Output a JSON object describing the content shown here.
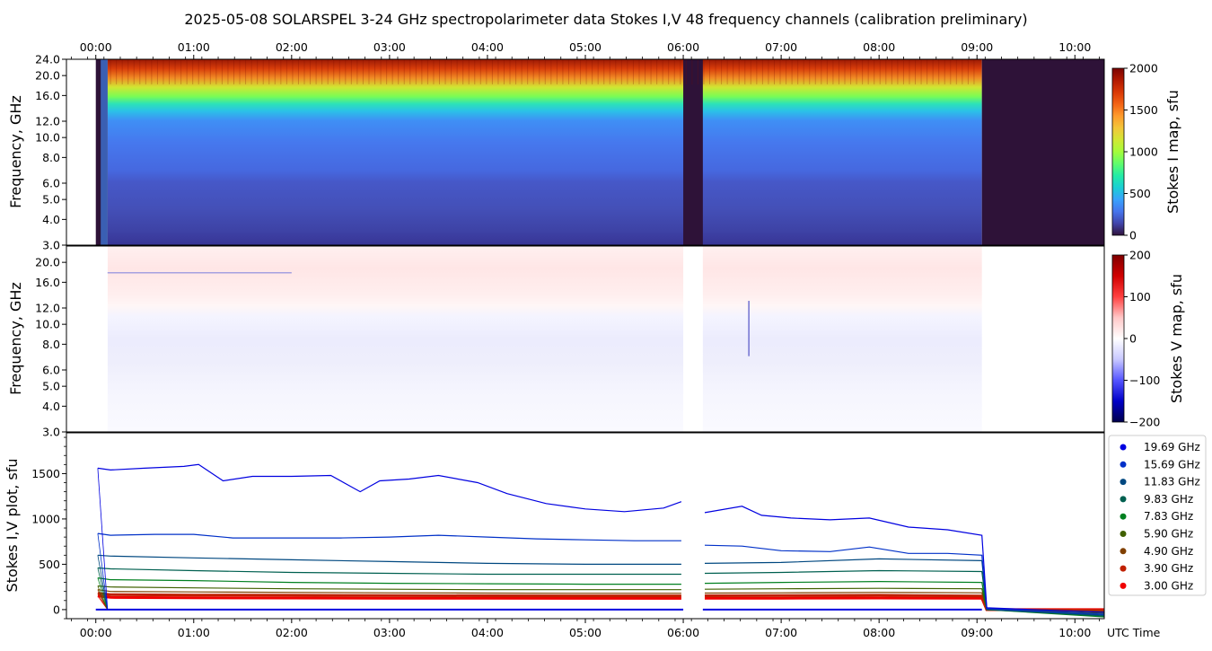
{
  "chart_data": {
    "title": "2025-05-08  SOLARSPEL  3-24 GHz spectropolarimeter data   Stokes I,V   48 frequency channels   (calibration preliminary)",
    "time_axis": {
      "label": "UTC Time",
      "range_hours": [
        -0.3,
        10.3
      ],
      "ticks": [
        "00:00",
        "01:00",
        "02:00",
        "03:00",
        "04:00",
        "05:00",
        "06:00",
        "07:00",
        "08:00",
        "09:00",
        "10:00"
      ],
      "tick_hours": [
        0,
        1,
        2,
        3,
        4,
        5,
        6,
        7,
        8,
        9,
        10
      ]
    },
    "panels": [
      {
        "type": "heatmap",
        "name": "stokes-i-map",
        "ylabel": "Frequency, GHz",
        "y_scale": "log",
        "ylim": [
          3.0,
          24.0
        ],
        "yticks": [
          "3.0",
          "4.0",
          "5.0",
          "6.0",
          "8.0",
          "10.0",
          "12.0",
          "16.0",
          "20.0",
          "24.0"
        ],
        "ytick_values": [
          3,
          4,
          5,
          6,
          8,
          10,
          12,
          16,
          20,
          24
        ],
        "colorbar": {
          "label": "Stokes I map, sfu",
          "range": [
            0,
            2000
          ],
          "ticks": [
            "0",
            "500",
            "1000",
            "1500",
            "2000"
          ],
          "tick_values": [
            0,
            500,
            1000,
            1500,
            2000
          ],
          "colormap": "turbo"
        },
        "data_gaps_hours": [
          [
            0.0,
            0.12
          ],
          [
            6.0,
            6.2
          ],
          [
            9.05,
            10.3
          ]
        ]
      },
      {
        "type": "heatmap",
        "name": "stokes-v-map",
        "ylabel": "Frequency, GHz",
        "y_scale": "log",
        "ylim": [
          3.0,
          24.0
        ],
        "yticks": [
          "3.0",
          "4.0",
          "5.0",
          "6.0",
          "8.0",
          "10.0",
          "12.0",
          "16.0",
          "20.0"
        ],
        "ytick_values": [
          3,
          4,
          5,
          6,
          8,
          10,
          12,
          16,
          20
        ],
        "colorbar": {
          "label": "Stokes V map, sfu",
          "range": [
            -200,
            200
          ],
          "ticks": [
            "−200",
            "−100",
            "0",
            "100",
            "200"
          ],
          "tick_values": [
            -200,
            -100,
            0,
            100,
            200
          ],
          "colormap": "seismic"
        }
      },
      {
        "type": "line",
        "name": "stokes-iv-plot",
        "ylabel": "Stokes I,V plot, sfu",
        "ylim": [
          -100,
          1950
        ],
        "yticks": [
          "0",
          "500",
          "1000",
          "1500"
        ],
        "ytick_values": [
          0,
          500,
          1000,
          1500
        ],
        "legend_position": "right",
        "series": [
          {
            "name": "19.69 GHz",
            "color": "#0000e0",
            "i_values": [
              [
                0.02,
                1560
              ],
              [
                0.15,
                1540
              ],
              [
                0.5,
                1560
              ],
              [
                0.9,
                1580
              ],
              [
                1.05,
                1600
              ],
              [
                1.3,
                1420
              ],
              [
                1.6,
                1470
              ],
              [
                2.0,
                1470
              ],
              [
                2.4,
                1480
              ],
              [
                2.7,
                1300
              ],
              [
                2.9,
                1420
              ],
              [
                3.2,
                1440
              ],
              [
                3.5,
                1480
              ],
              [
                3.9,
                1400
              ],
              [
                4.2,
                1280
              ],
              [
                4.6,
                1170
              ],
              [
                5.0,
                1110
              ],
              [
                5.4,
                1080
              ],
              [
                5.8,
                1120
              ],
              [
                5.98,
                1190
              ],
              [
                6.22,
                1070
              ],
              [
                6.6,
                1140
              ],
              [
                6.8,
                1040
              ],
              [
                7.1,
                1010
              ],
              [
                7.5,
                990
              ],
              [
                7.9,
                1010
              ],
              [
                8.3,
                910
              ],
              [
                8.7,
                880
              ],
              [
                9.05,
                820
              ],
              [
                9.1,
                20
              ],
              [
                10.3,
                -30
              ]
            ]
          },
          {
            "name": "15.69 GHz",
            "color": "#0030c8",
            "i_values": [
              [
                0.02,
                840
              ],
              [
                0.15,
                820
              ],
              [
                0.6,
                830
              ],
              [
                1.0,
                830
              ],
              [
                1.4,
                790
              ],
              [
                2.0,
                790
              ],
              [
                2.5,
                790
              ],
              [
                3.0,
                800
              ],
              [
                3.5,
                820
              ],
              [
                4.0,
                800
              ],
              [
                4.5,
                780
              ],
              [
                5.0,
                770
              ],
              [
                5.5,
                760
              ],
              [
                5.98,
                760
              ],
              [
                6.22,
                710
              ],
              [
                6.6,
                700
              ],
              [
                7.0,
                650
              ],
              [
                7.5,
                640
              ],
              [
                7.9,
                690
              ],
              [
                8.3,
                620
              ],
              [
                8.7,
                620
              ],
              [
                9.05,
                600
              ],
              [
                9.1,
                10
              ],
              [
                10.3,
                -50
              ]
            ]
          },
          {
            "name": "11.83 GHz",
            "color": "#004880",
            "i_values": [
              [
                0.02,
                600
              ],
              [
                0.15,
                590
              ],
              [
                1.0,
                570
              ],
              [
                2.0,
                550
              ],
              [
                3.0,
                530
              ],
              [
                4.0,
                510
              ],
              [
                5.0,
                500
              ],
              [
                5.98,
                500
              ],
              [
                6.22,
                510
              ],
              [
                7.0,
                520
              ],
              [
                8.0,
                560
              ],
              [
                9.05,
                540
              ],
              [
                9.1,
                5
              ],
              [
                10.3,
                -60
              ]
            ]
          },
          {
            "name": "9.83 GHz",
            "color": "#006050",
            "i_values": [
              [
                0.02,
                460
              ],
              [
                0.15,
                450
              ],
              [
                1.0,
                430
              ],
              [
                2.0,
                410
              ],
              [
                3.0,
                400
              ],
              [
                4.0,
                390
              ],
              [
                5.0,
                390
              ],
              [
                5.98,
                390
              ],
              [
                6.22,
                400
              ],
              [
                7.0,
                410
              ],
              [
                8.0,
                430
              ],
              [
                9.05,
                420
              ],
              [
                9.1,
                0
              ],
              [
                10.3,
                -70
              ]
            ]
          },
          {
            "name": "7.83 GHz",
            "color": "#008020",
            "i_values": [
              [
                0.02,
                350
              ],
              [
                0.15,
                330
              ],
              [
                1.0,
                320
              ],
              [
                2.0,
                300
              ],
              [
                3.0,
                290
              ],
              [
                4.0,
                285
              ],
              [
                5.0,
                280
              ],
              [
                5.98,
                280
              ],
              [
                6.22,
                290
              ],
              [
                7.0,
                300
              ],
              [
                8.0,
                310
              ],
              [
                9.05,
                300
              ],
              [
                9.1,
                0
              ],
              [
                10.3,
                -80
              ]
            ]
          },
          {
            "name": "5.90 GHz",
            "color": "#406000",
            "i_values": [
              [
                0.02,
                260
              ],
              [
                0.15,
                250
              ],
              [
                1.0,
                240
              ],
              [
                2.0,
                230
              ],
              [
                3.0,
                225
              ],
              [
                4.0,
                220
              ],
              [
                5.0,
                220
              ],
              [
                5.98,
                220
              ],
              [
                6.22,
                225
              ],
              [
                7.0,
                230
              ],
              [
                8.0,
                235
              ],
              [
                9.05,
                230
              ],
              [
                9.1,
                0
              ],
              [
                10.3,
                -40
              ]
            ]
          },
          {
            "name": "4.90 GHz",
            "color": "#804000",
            "i_values": [
              [
                0.02,
                220
              ],
              [
                0.15,
                200
              ],
              [
                1.0,
                195
              ],
              [
                2.0,
                190
              ],
              [
                3.0,
                185
              ],
              [
                4.0,
                182
              ],
              [
                5.0,
                180
              ],
              [
                5.98,
                180
              ],
              [
                6.22,
                182
              ],
              [
                7.0,
                185
              ],
              [
                8.0,
                190
              ],
              [
                9.05,
                185
              ],
              [
                9.1,
                0
              ],
              [
                10.3,
                -20
              ]
            ]
          },
          {
            "name": "3.90 GHz",
            "color": "#c02000",
            "i_values": [
              [
                0.02,
                180
              ],
              [
                0.15,
                165
              ],
              [
                1.0,
                160
              ],
              [
                2.0,
                158
              ],
              [
                3.0,
                155
              ],
              [
                4.0,
                153
              ],
              [
                5.0,
                152
              ],
              [
                5.98,
                152
              ],
              [
                6.22,
                153
              ],
              [
                7.0,
                155
              ],
              [
                8.0,
                158
              ],
              [
                9.05,
                150
              ],
              [
                9.1,
                0
              ],
              [
                10.3,
                -10
              ]
            ]
          },
          {
            "name": "3.00 GHz",
            "color": "#f00000",
            "i_values": [
              [
                0.02,
                150
              ],
              [
                0.15,
                135
              ],
              [
                1.0,
                130
              ],
              [
                2.0,
                128
              ],
              [
                3.0,
                126
              ],
              [
                4.0,
                125
              ],
              [
                5.0,
                124
              ],
              [
                5.98,
                124
              ],
              [
                6.22,
                125
              ],
              [
                7.0,
                126
              ],
              [
                8.0,
                128
              ],
              [
                9.05,
                125
              ],
              [
                9.1,
                0
              ],
              [
                10.3,
                0
              ]
            ]
          }
        ]
      }
    ]
  }
}
